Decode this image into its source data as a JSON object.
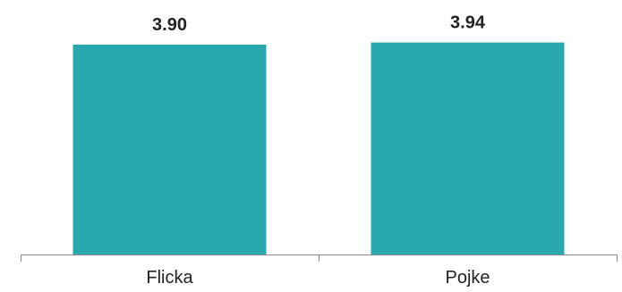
{
  "chart_data": {
    "type": "bar",
    "categories": [
      "Flicka",
      "Pojke"
    ],
    "values": [
      3.9,
      3.94
    ],
    "data_labels": [
      "3.90",
      "3.94"
    ],
    "title": "",
    "xlabel": "",
    "ylabel": "",
    "grid": false,
    "legend": "none",
    "bar_color": "#2aa8b0"
  }
}
